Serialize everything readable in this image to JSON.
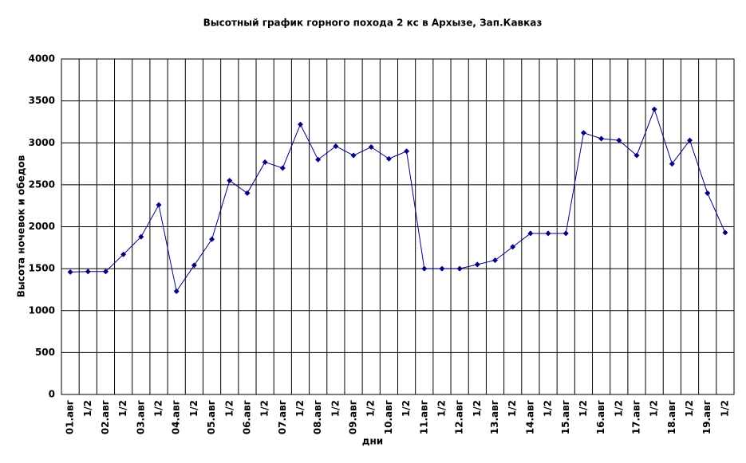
{
  "chart_data": {
    "type": "line",
    "title": "Высотный график горного похода 2 кс в Архызе, Зап.Кавказ",
    "x_label": "дни",
    "y_label": "Высота ночевок и обедов",
    "categories": [
      "01.авг",
      "1/2",
      "02.авг",
      "1/2",
      "03.авг",
      "1/2",
      "04.авг",
      "1/2",
      "05.авг",
      "1/2",
      "06.авг",
      "1/2",
      "07.авг",
      "1/2",
      "08.авг",
      "1/2",
      "09.авг",
      "1/2",
      "10.авг",
      "1/2",
      "11.авг",
      "1/2",
      "12.авг",
      "1/2",
      "13.авг",
      "1/2",
      "14.авг",
      "1/2",
      "15.авг",
      "1/2",
      "16.авг",
      "1/2",
      "17.авг",
      "1/2",
      "18.авг",
      "1/2",
      "19.авг",
      "1/2"
    ],
    "values": [
      1460,
      1465,
      1465,
      1670,
      1880,
      2260,
      1230,
      1540,
      1850,
      2550,
      2400,
      2770,
      2700,
      3220,
      2800,
      2960,
      2850,
      2950,
      2810,
      2900,
      1500,
      1500,
      1500,
      1550,
      1600,
      1760,
      1920,
      1920,
      1920,
      3120,
      3050,
      3030,
      2850,
      3400,
      2750,
      3030,
      2400,
      1930
    ],
    "color": "#000080",
    "ylim": [
      0,
      4000
    ],
    "yticks": [
      0,
      500,
      1000,
      1500,
      2000,
      2500,
      3000,
      3500,
      4000
    ],
    "grid": true
  }
}
